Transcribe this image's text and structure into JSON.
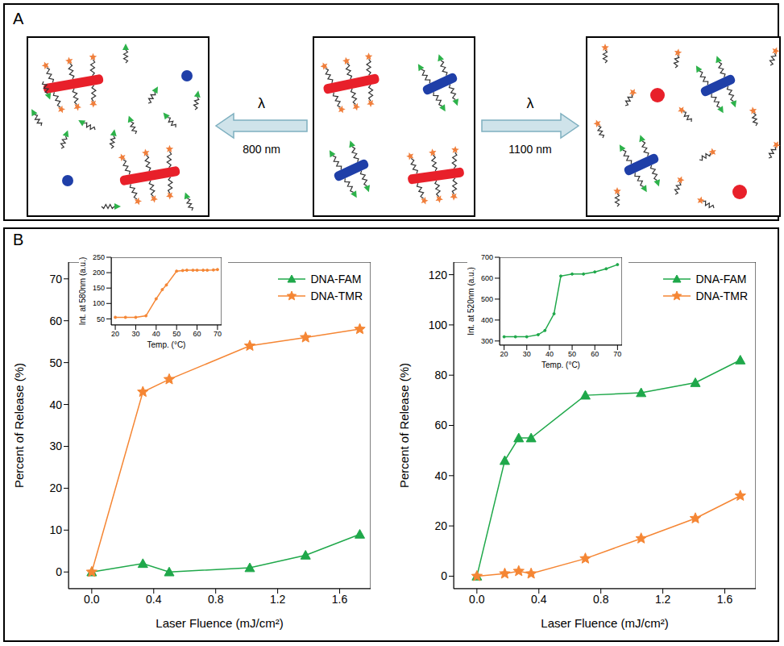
{
  "panel_a": {
    "label": "A",
    "arrows": [
      {
        "symbol": "λ",
        "label": "800 nm"
      },
      {
        "symbol": "λ",
        "label": "1100 nm"
      }
    ]
  },
  "panel_b": {
    "label": "B"
  },
  "chart_data": [
    {
      "type": "line",
      "x_label": "Laser Fluence (mJ/cm²)",
      "y_label": "Percent of Release (%)",
      "xlim": [
        -0.15,
        1.8
      ],
      "xticks": [
        {
          "value": 0,
          "label": "0.0"
        },
        0.4,
        0.8,
        1.2,
        1.6
      ],
      "ylim": [
        -4,
        74
      ],
      "yticks": [
        0,
        10,
        20,
        30,
        40,
        50,
        60,
        70
      ],
      "legend": "upper right",
      "x": [
        0,
        0.33,
        0.5,
        1.02,
        1.38,
        1.73
      ],
      "series": [
        {
          "name": "DNA-FAM",
          "color": "#1fa84a",
          "marker": "triangle",
          "values": [
            0,
            2,
            0,
            1,
            4,
            9
          ]
        },
        {
          "name": "DNA-TMR",
          "color": "#f58634",
          "marker": "star",
          "values": [
            0,
            43,
            46,
            54,
            56,
            58
          ]
        }
      ]
    },
    {
      "type": "line",
      "x_label": "Temp. (°C)",
      "y_label": "Int. at 580nm (a.u.)",
      "xlim": [
        18,
        72
      ],
      "xticks": [
        20,
        30,
        40,
        50,
        60,
        70
      ],
      "ylim": [
        30,
        250
      ],
      "yticks": [
        50,
        100,
        150,
        200,
        250
      ],
      "x": [
        20,
        25,
        30,
        35,
        40,
        43,
        45,
        50,
        53,
        55,
        58,
        60,
        63,
        65,
        68,
        70
      ],
      "series": [
        {
          "color": "#f58634",
          "marker": "circle",
          "values": [
            55,
            55,
            55,
            60,
            115,
            145,
            160,
            205,
            207,
            208,
            208,
            208,
            208,
            208,
            209,
            210
          ]
        }
      ]
    },
    {
      "type": "line",
      "x_label": "Laser Fluence (mJ/cm²)",
      "y_label": "Percent of Release (%)",
      "xlim": [
        -0.15,
        1.8
      ],
      "xticks": [
        {
          "value": 0,
          "label": "0.0"
        },
        0.4,
        0.8,
        1.2,
        1.6
      ],
      "ylim": [
        -5,
        125
      ],
      "yticks": [
        0,
        20,
        40,
        60,
        80,
        100,
        120
      ],
      "legend": "upper right",
      "x": [
        0,
        0.18,
        0.27,
        0.35,
        0.7,
        1.06,
        1.41,
        1.7
      ],
      "series": [
        {
          "name": "DNA-FAM",
          "color": "#1fa84a",
          "marker": "triangle",
          "values": [
            0,
            46,
            55,
            55,
            72,
            73,
            77,
            86
          ]
        },
        {
          "name": "DNA-TMR",
          "color": "#f58634",
          "marker": "star",
          "values": [
            0,
            1,
            2,
            1,
            7,
            15,
            23,
            32
          ]
        }
      ]
    },
    {
      "type": "line",
      "x_label": "Temp. (°C)",
      "y_label": "Int. at 520nm (a.u.)",
      "xlim": [
        18,
        72
      ],
      "xticks": [
        20,
        30,
        40,
        50,
        60,
        70
      ],
      "ylim": [
        280,
        700
      ],
      "yticks": [
        300,
        400,
        500,
        600,
        700
      ],
      "x": [
        20,
        25,
        30,
        35,
        38,
        42,
        45,
        50,
        55,
        60,
        65,
        70
      ],
      "series": [
        {
          "color": "#1fa84a",
          "marker": "circle",
          "values": [
            320,
            320,
            320,
            330,
            350,
            430,
            610,
            620,
            620,
            630,
            645,
            665
          ]
        }
      ]
    }
  ]
}
